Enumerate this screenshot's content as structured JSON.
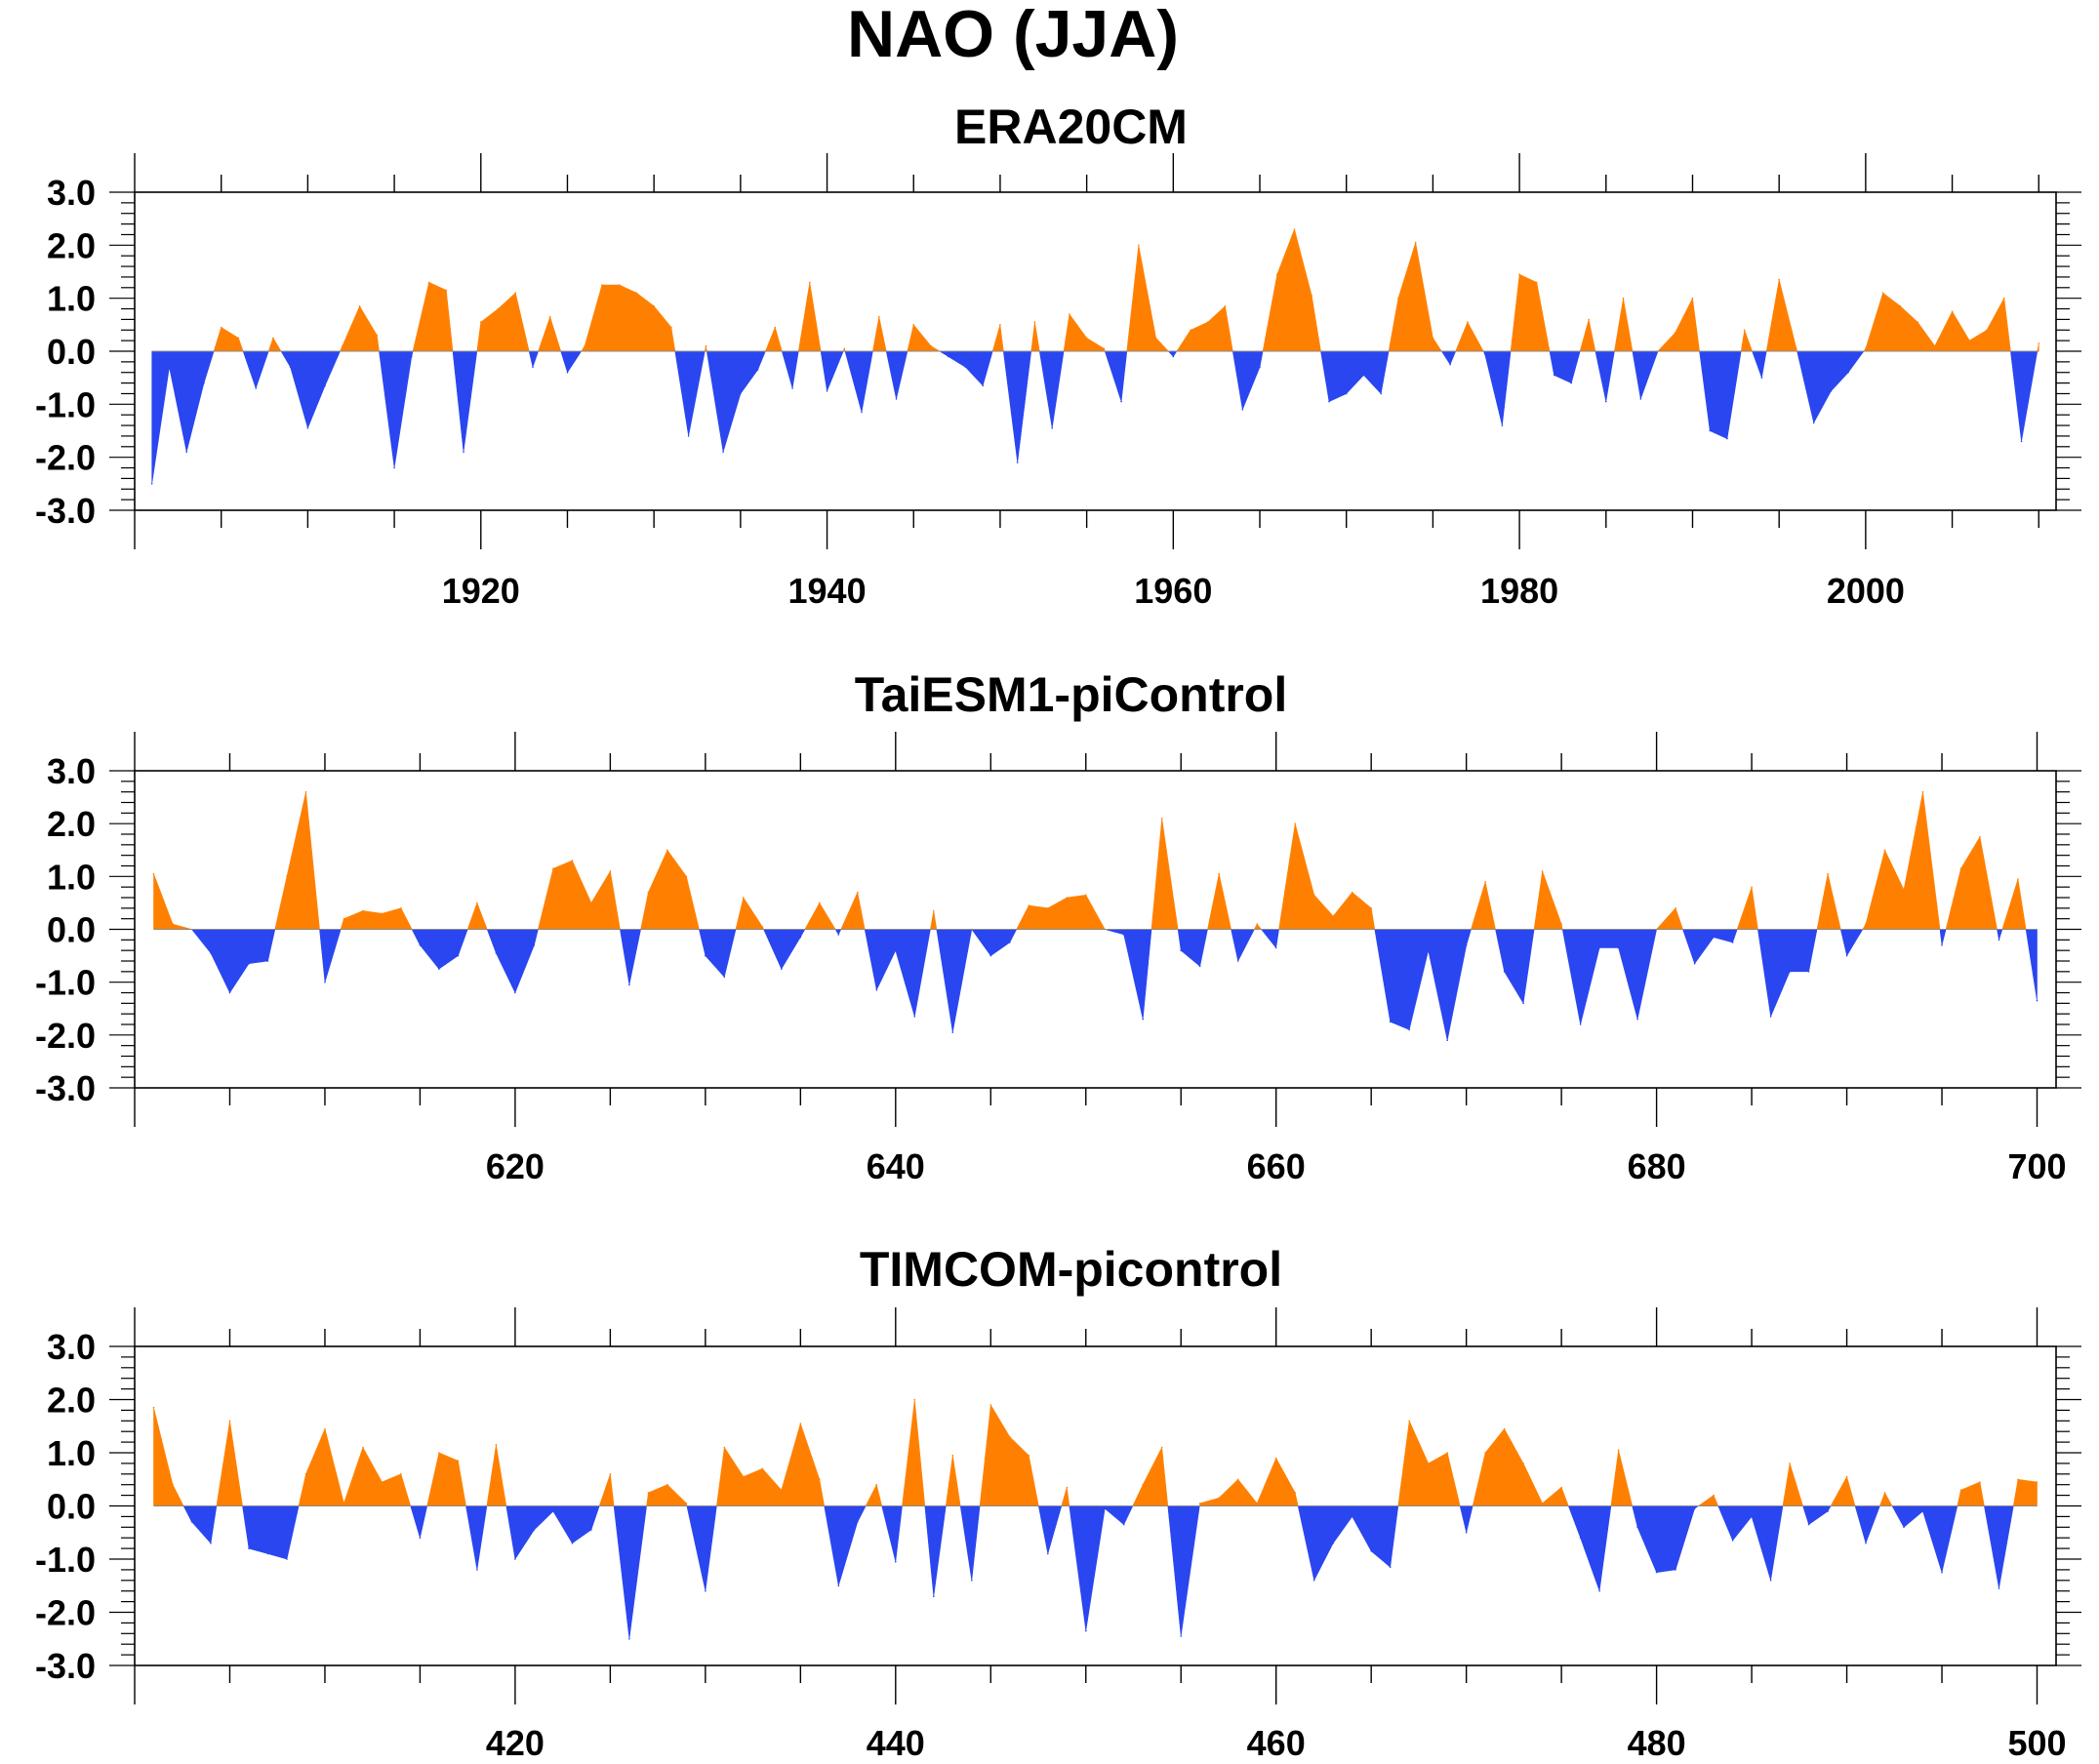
{
  "title": "NAO (JJA)",
  "colors": {
    "positive": "#ff8000",
    "negative": "#2a46f0",
    "axis": "#000000"
  },
  "chart_data": [
    {
      "type": "area",
      "title": "ERA20CM",
      "ylim": [
        -3,
        3
      ],
      "yticks": [
        "3.0",
        "2.0",
        "1.0",
        "0.0",
        "-1.0",
        "-2.0",
        "-3.0"
      ],
      "xlim": [
        1900,
        2011
      ],
      "xticks": [
        1920,
        1940,
        1960,
        1980,
        2000
      ],
      "grid": false,
      "x": [
        1901,
        1902,
        1903,
        1904,
        1905,
        1906,
        1907,
        1908,
        1909,
        1910,
        1911,
        1912,
        1913,
        1914,
        1915,
        1916,
        1917,
        1918,
        1919,
        1920,
        1921,
        1922,
        1923,
        1924,
        1925,
        1926,
        1927,
        1928,
        1929,
        1930,
        1931,
        1932,
        1933,
        1934,
        1935,
        1936,
        1937,
        1938,
        1939,
        1940,
        1941,
        1942,
        1943,
        1944,
        1945,
        1946,
        1947,
        1948,
        1949,
        1950,
        1951,
        1952,
        1953,
        1954,
        1955,
        1956,
        1957,
        1958,
        1959,
        1960,
        1961,
        1962,
        1963,
        1964,
        1965,
        1966,
        1967,
        1968,
        1969,
        1970,
        1971,
        1972,
        1973,
        1974,
        1975,
        1976,
        1977,
        1978,
        1979,
        1980,
        1981,
        1982,
        1983,
        1984,
        1985,
        1986,
        1987,
        1988,
        1989,
        1990,
        1991,
        1992,
        1993,
        1994,
        1995,
        1996,
        1997,
        1998,
        1999,
        2000,
        2001,
        2002,
        2003,
        2004,
        2005,
        2006,
        2007,
        2008,
        2009,
        2010
      ],
      "values": [
        -2.5,
        -0.3,
        -1.9,
        -0.6,
        0.45,
        0.25,
        -0.7,
        0.25,
        -0.3,
        -1.45,
        -0.65,
        0.1,
        0.85,
        0.3,
        -2.2,
        -0.1,
        1.3,
        1.15,
        -1.9,
        0.55,
        0.8,
        1.1,
        -0.3,
        0.65,
        -0.4,
        0.1,
        1.25,
        1.25,
        1.1,
        0.85,
        0.45,
        -1.6,
        0.1,
        -1.9,
        -0.8,
        -0.35,
        0.45,
        -0.7,
        1.3,
        -0.75,
        0.05,
        -1.15,
        0.65,
        -0.9,
        0.5,
        0.1,
        -0.1,
        -0.3,
        -0.65,
        0.5,
        -2.1,
        0.55,
        -1.45,
        0.7,
        0.25,
        0.05,
        -0.95,
        2.0,
        0.25,
        -0.1,
        0.4,
        0.55,
        0.85,
        -1.1,
        -0.3,
        1.45,
        2.3,
        1.05,
        -0.95,
        -0.8,
        -0.45,
        -0.8,
        1.0,
        2.05,
        0.25,
        -0.25,
        0.55,
        -0.05,
        -1.4,
        1.45,
        1.3,
        -0.45,
        -0.6,
        0.6,
        -0.95,
        1.0,
        -0.9,
        0.0,
        0.35,
        1.0,
        -1.5,
        -1.65,
        0.4,
        -0.5,
        1.35,
        0.05,
        -1.35,
        -0.75,
        -0.4,
        0.05,
        1.1,
        0.85,
        0.55,
        0.1,
        0.75,
        0.2,
        0.4,
        1.0,
        -1.7,
        0.15
      ]
    },
    {
      "type": "area",
      "title": "TaiESM1-piControl",
      "ylim": [
        -3,
        3
      ],
      "yticks": [
        "3.0",
        "2.0",
        "1.0",
        "0.0",
        "-1.0",
        "-2.0",
        "-3.0"
      ],
      "xlim": [
        600,
        701
      ],
      "xticks": [
        620,
        640,
        660,
        680,
        700
      ],
      "grid": false,
      "x": [
        601,
        602,
        603,
        604,
        605,
        606,
        607,
        608,
        609,
        610,
        611,
        612,
        613,
        614,
        615,
        616,
        617,
        618,
        619,
        620,
        621,
        622,
        623,
        624,
        625,
        626,
        627,
        628,
        629,
        630,
        631,
        632,
        633,
        634,
        635,
        636,
        637,
        638,
        639,
        640,
        641,
        642,
        643,
        644,
        645,
        646,
        647,
        648,
        649,
        650,
        651,
        652,
        653,
        654,
        655,
        656,
        657,
        658,
        659,
        660,
        661,
        662,
        663,
        664,
        665,
        666,
        667,
        668,
        669,
        670,
        671,
        672,
        673,
        674,
        675,
        676,
        677,
        678,
        679,
        680,
        681,
        682,
        683,
        684,
        685,
        686,
        687,
        688,
        689,
        690,
        691,
        692,
        693,
        694,
        695,
        696,
        697,
        698,
        699,
        700
      ],
      "values": [
        1.05,
        0.1,
        0.0,
        -0.45,
        -1.2,
        -0.65,
        -0.6,
        1.0,
        2.6,
        -1.0,
        0.2,
        0.35,
        0.3,
        0.4,
        -0.3,
        -0.75,
        -0.5,
        0.5,
        -0.45,
        -1.2,
        -0.3,
        1.15,
        1.3,
        0.5,
        1.1,
        -1.05,
        0.7,
        1.5,
        1.0,
        -0.5,
        -0.9,
        0.6,
        0.05,
        -0.75,
        -0.15,
        0.5,
        -0.1,
        0.7,
        -1.15,
        -0.4,
        -1.65,
        0.35,
        -1.95,
        0.0,
        -0.5,
        -0.25,
        0.45,
        0.4,
        0.6,
        0.65,
        0.0,
        -0.1,
        -1.7,
        2.1,
        -0.4,
        -0.7,
        1.05,
        -0.6,
        0.1,
        -0.35,
        2.0,
        0.65,
        0.25,
        0.7,
        0.4,
        -1.75,
        -1.9,
        -0.4,
        -2.1,
        -0.3,
        0.9,
        -0.8,
        -1.4,
        1.1,
        0.1,
        -1.8,
        -0.35,
        -0.35,
        -1.7,
        0.0,
        0.4,
        -0.65,
        -0.15,
        -0.25,
        0.8,
        -1.65,
        -0.8,
        -0.8,
        1.05,
        -0.5,
        0.1,
        1.5,
        0.75,
        2.6,
        -0.3,
        1.15,
        1.75,
        -0.2,
        0.95,
        -1.35
      ]
    },
    {
      "type": "area",
      "title": "TIMCOM-picontrol",
      "ylim": [
        -3,
        3
      ],
      "yticks": [
        "3.0",
        "2.0",
        "1.0",
        "0.0",
        "-1.0",
        "-2.0",
        "-3.0"
      ],
      "xlim": [
        400,
        501
      ],
      "xticks": [
        420,
        440,
        460,
        480,
        500
      ],
      "grid": false,
      "x": [
        401,
        402,
        403,
        404,
        405,
        406,
        407,
        408,
        409,
        410,
        411,
        412,
        413,
        414,
        415,
        416,
        417,
        418,
        419,
        420,
        421,
        422,
        423,
        424,
        425,
        426,
        427,
        428,
        429,
        430,
        431,
        432,
        433,
        434,
        435,
        436,
        437,
        438,
        439,
        440,
        441,
        442,
        443,
        444,
        445,
        446,
        447,
        448,
        449,
        450,
        451,
        452,
        453,
        454,
        455,
        456,
        457,
        458,
        459,
        460,
        461,
        462,
        463,
        464,
        465,
        466,
        467,
        468,
        469,
        470,
        471,
        472,
        473,
        474,
        475,
        476,
        477,
        478,
        479,
        480,
        481,
        482,
        483,
        484,
        485,
        486,
        487,
        488,
        489,
        490,
        491,
        492,
        493,
        494,
        495,
        496,
        497,
        498,
        499,
        500
      ],
      "values": [
        1.85,
        0.4,
        -0.3,
        -0.7,
        1.6,
        -0.8,
        -0.9,
        -1.0,
        0.6,
        1.45,
        0.05,
        1.1,
        0.45,
        0.6,
        -0.6,
        1.0,
        0.85,
        -1.2,
        1.15,
        -1.0,
        -0.45,
        -0.1,
        -0.7,
        -0.45,
        0.6,
        -2.5,
        0.25,
        0.4,
        0.05,
        -1.6,
        1.1,
        0.55,
        0.7,
        0.3,
        1.55,
        0.5,
        -1.5,
        -0.3,
        0.4,
        -1.05,
        2.0,
        -1.7,
        0.95,
        -1.4,
        1.9,
        1.3,
        0.95,
        -0.9,
        0.35,
        -2.35,
        -0.05,
        -0.35,
        0.4,
        1.1,
        -2.45,
        0.05,
        0.15,
        0.5,
        0.05,
        0.9,
        0.25,
        -1.4,
        -0.7,
        -0.2,
        -0.85,
        -1.15,
        1.6,
        0.8,
        1.0,
        -0.5,
        1.0,
        1.45,
        0.8,
        0.05,
        0.35,
        -0.6,
        -1.6,
        1.05,
        -0.4,
        -1.25,
        -1.2,
        -0.05,
        0.2,
        -0.65,
        -0.2,
        -1.4,
        0.8,
        -0.35,
        -0.1,
        0.55,
        -0.7,
        0.25,
        -0.4,
        -0.1,
        -1.25,
        0.3,
        0.45,
        -1.55,
        0.5,
        0.45
      ]
    }
  ]
}
